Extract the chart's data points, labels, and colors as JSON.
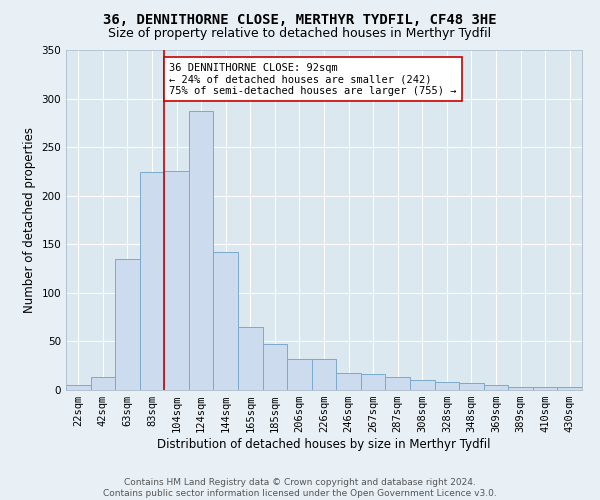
{
  "title_line1": "36, DENNITHORNE CLOSE, MERTHYR TYDFIL, CF48 3HE",
  "title_line2": "Size of property relative to detached houses in Merthyr Tydfil",
  "xlabel": "Distribution of detached houses by size in Merthyr Tydfil",
  "ylabel": "Number of detached properties",
  "bar_color": "#ccdcee",
  "bar_edge_color": "#7aaaca",
  "background_color": "#dce8f0",
  "fig_background_color": "#e8f0f6",
  "grid_color": "#ffffff",
  "categories": [
    "22sqm",
    "42sqm",
    "63sqm",
    "83sqm",
    "104sqm",
    "124sqm",
    "144sqm",
    "165sqm",
    "185sqm",
    "206sqm",
    "226sqm",
    "246sqm",
    "267sqm",
    "287sqm",
    "308sqm",
    "328sqm",
    "348sqm",
    "369sqm",
    "389sqm",
    "410sqm",
    "430sqm"
  ],
  "values": [
    5,
    13,
    135,
    224,
    225,
    287,
    142,
    65,
    47,
    32,
    32,
    17,
    16,
    13,
    10,
    8,
    7,
    5,
    3,
    3,
    3
  ],
  "ylim": [
    0,
    350
  ],
  "yticks": [
    0,
    50,
    100,
    150,
    200,
    250,
    300,
    350
  ],
  "property_line_x": 3.5,
  "property_line_color": "#cc0000",
  "annotation_text": "36 DENNITHORNE CLOSE: 92sqm\n← 24% of detached houses are smaller (242)\n75% of semi-detached houses are larger (755) →",
  "annotation_box_color": "#ffffff",
  "annotation_box_edge": "#cc0000",
  "footer_text": "Contains HM Land Registry data © Crown copyright and database right 2024.\nContains public sector information licensed under the Open Government Licence v3.0.",
  "title_fontsize": 10,
  "subtitle_fontsize": 9,
  "axis_label_fontsize": 8.5,
  "tick_fontsize": 7.5,
  "annotation_fontsize": 7.5,
  "footer_fontsize": 6.5
}
